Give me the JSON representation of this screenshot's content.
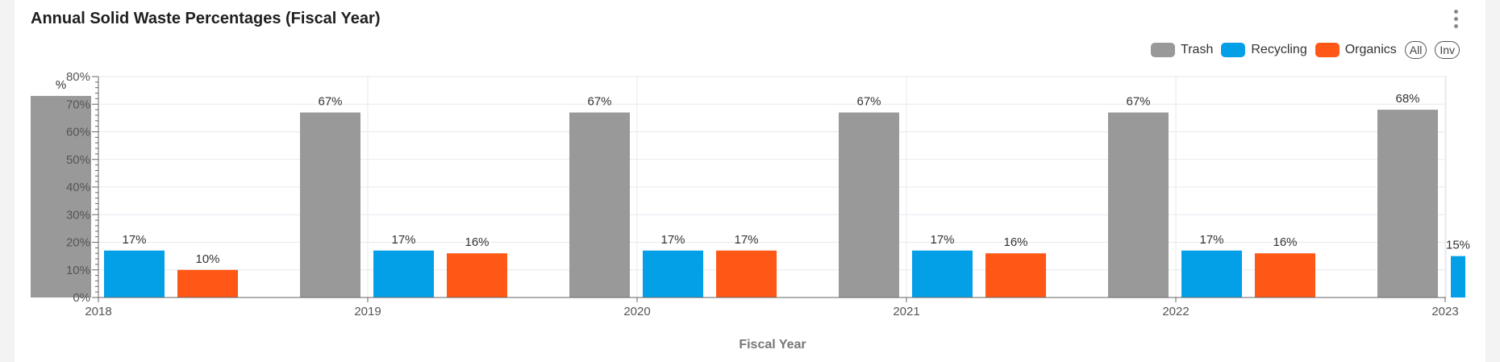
{
  "title": "Annual Solid Waste Percentages (Fiscal Year)",
  "menu_icon": "more-vertical-icon",
  "legend": {
    "items": [
      {
        "name": "Trash",
        "color": "#999999"
      },
      {
        "name": "Recycling",
        "color": "#03a0e8"
      },
      {
        "name": "Organics",
        "color": "#ff5716"
      }
    ],
    "all_label": "All",
    "inv_label": "Inv"
  },
  "chart_data": {
    "type": "bar",
    "xlabel": "Fiscal Year",
    "ylabel": "",
    "categories": [
      "2018",
      "2019",
      "2020",
      "2021",
      "2022",
      "2023"
    ],
    "series": [
      {
        "name": "Trash",
        "values": [
          73,
          67,
          67,
          67,
          67,
          68
        ],
        "labels": [
          "%",
          "67%",
          "67%",
          "67%",
          "67%",
          "68%"
        ]
      },
      {
        "name": "Recycling",
        "values": [
          17,
          17,
          17,
          17,
          17,
          15
        ],
        "labels": [
          "17%",
          "17%",
          "17%",
          "17%",
          "17%",
          "15%"
        ]
      },
      {
        "name": "Organics",
        "values": [
          10,
          16,
          17,
          16,
          16,
          null
        ],
        "labels": [
          "10%",
          "16%",
          "17%",
          "16%",
          "16%",
          ""
        ]
      }
    ],
    "ylim": [
      0,
      80
    ],
    "yticks": [
      "0%",
      "10%",
      "20%",
      "30%",
      "40%",
      "50%",
      "60%",
      "70%",
      "80%"
    ],
    "grid": true,
    "legend_position": "top-right"
  }
}
